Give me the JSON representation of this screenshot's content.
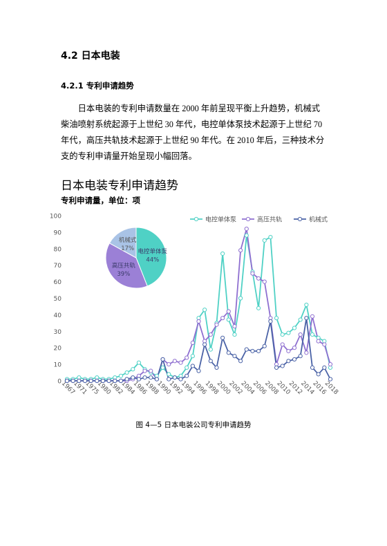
{
  "heading": "4.2 日本电装",
  "subheading": "4.2.1 专利申请趋势",
  "paragraph": "日本电装的专利申请数量在 2000 年前呈现平衡上升趋势，机械式柴油喷射系统起源于上世纪 30 年代，电控单体泵技术起源于上世纪 70 年代，高压共轨技术起源于上世纪 90 年代。在 2010 年后，三种技术分支的专利申请量开始呈现小幅回落。",
  "chart_data": [
    {
      "type": "line",
      "title": "日本电装专利申请趋势",
      "subtitle": "专利申请量，单位：项",
      "categories": [
        "1967",
        null,
        "1971",
        null,
        "1975",
        null,
        "1980",
        null,
        "1982",
        null,
        "1984",
        null,
        "1986",
        null,
        "1988",
        null,
        "1990",
        null,
        "1992",
        null,
        "1994",
        null,
        "1996",
        null,
        "1998",
        null,
        "2000",
        null,
        "2002",
        null,
        "2004",
        null,
        "2006",
        null,
        "2008",
        null,
        "2010",
        null,
        "2012",
        null,
        "2014",
        null,
        "2016",
        null,
        "2018"
      ],
      "series": [
        {
          "name": "电控单体泵",
          "color": "#4fd1c5",
          "values": [
            1,
            1,
            2,
            1,
            1,
            2,
            1,
            1,
            2,
            3,
            5,
            7,
            11,
            7,
            5,
            3,
            8,
            4,
            2,
            3,
            8,
            15,
            38,
            43,
            19,
            35,
            77,
            37,
            28,
            50,
            88,
            66,
            44,
            85,
            87,
            38,
            28,
            29,
            32,
            37,
            46,
            28,
            26,
            24,
            8
          ]
        },
        {
          "name": "高压共轨",
          "color": "#8e6fd0",
          "values": [
            0,
            0,
            0,
            0,
            0,
            0,
            0,
            0,
            0,
            0,
            0,
            1,
            3,
            6,
            6,
            1,
            13,
            10,
            12,
            11,
            14,
            23,
            36,
            24,
            28,
            34,
            38,
            42,
            33,
            79,
            92,
            65,
            62,
            60,
            38,
            10,
            22,
            18,
            20,
            28,
            17,
            39,
            24,
            22,
            10
          ]
        },
        {
          "name": "机械式",
          "color": "#4a62a6",
          "values": [
            0,
            0,
            0,
            0,
            0,
            0,
            0,
            0,
            0,
            0,
            1,
            2,
            1,
            2,
            2,
            1,
            13,
            1,
            2,
            1,
            3,
            9,
            6,
            22,
            12,
            8,
            26,
            17,
            15,
            12,
            19,
            18,
            18,
            21,
            36,
            8,
            9,
            12,
            13,
            15,
            38,
            8,
            4,
            8,
            1
          ]
        }
      ],
      "ylim": [
        0,
        100
      ],
      "yticks": [
        0,
        10,
        20,
        30,
        40,
        50,
        60,
        70,
        80,
        90,
        100
      ],
      "legend": "top-right"
    },
    {
      "type": "pie",
      "categories": [
        "电控单体泵",
        "高压共轨",
        "机械式"
      ],
      "values": [
        44,
        39,
        17
      ],
      "value_labels": [
        "44%",
        "39%",
        "17%"
      ],
      "colors": [
        "#4fd1c5",
        "#9b80d6",
        "#a9c3e6"
      ]
    }
  ],
  "caption": "图 4—5 日本电装公司专利申请趋势"
}
